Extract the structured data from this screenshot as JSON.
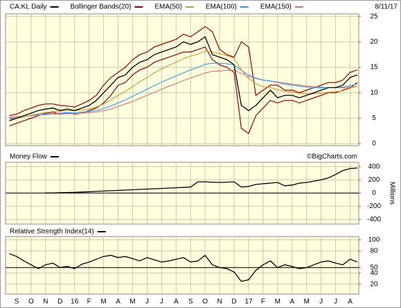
{
  "date": "8/11/17",
  "credit": "©BigCharts.com",
  "chart_data": [
    {
      "type": "line",
      "title": "CA:KL Daily",
      "ylim": [
        -0.4,
        25.5
      ],
      "yticks": [
        0,
        5,
        10,
        15,
        20,
        25
      ],
      "grid": true,
      "series": [
        {
          "name": "CA:KL Daily",
          "color": "#000000",
          "values": [
            4.5,
            5,
            5.5,
            6,
            6.5,
            6.8,
            7,
            6.5,
            6.8,
            6.5,
            7,
            7.5,
            8.5,
            10,
            11.5,
            13,
            13.5,
            15,
            16,
            16.5,
            17.5,
            18,
            18.5,
            19,
            20,
            19.5,
            20,
            21,
            17.5,
            17,
            16.5,
            15.5,
            7.5,
            6.5,
            7.5,
            9,
            10.5,
            9,
            9.5,
            9.5,
            9,
            9.5,
            10,
            10.5,
            11,
            11,
            11.5,
            13,
            13.5
          ]
        },
        {
          "name": "Bollinger Bands(20)",
          "color": "#990000",
          "upper": [
            5.5,
            5.8,
            6.5,
            7,
            7.5,
            7.8,
            7.8,
            7.5,
            7.4,
            7.2,
            7.8,
            8.5,
            9.5,
            11.5,
            13,
            14,
            15,
            16.5,
            17.5,
            18,
            19,
            19.5,
            20,
            20.5,
            21.5,
            21,
            22,
            23,
            22,
            18.5,
            17.5,
            17,
            20,
            19,
            9.5,
            10.5,
            11.5,
            11.5,
            10.5,
            10.5,
            10,
            10.5,
            11,
            11.5,
            12,
            12,
            12.5,
            14,
            14.5
          ],
          "lower": [
            3.5,
            4,
            4.5,
            5,
            5.5,
            6,
            6.2,
            5.8,
            6,
            5.8,
            6,
            6.5,
            7,
            8,
            9.5,
            11.5,
            12,
            13.5,
            14.5,
            15,
            16,
            16.5,
            17,
            17.5,
            18,
            18,
            18.5,
            19,
            16.5,
            15.5,
            15,
            14,
            3,
            2,
            5.5,
            7,
            8.5,
            8,
            8.5,
            8.5,
            8,
            8.5,
            9,
            9.5,
            10,
            10,
            10.5,
            11,
            12
          ]
        },
        {
          "name": "EMA(50)",
          "color": "#cc9933",
          "values": [
            4.8,
            5,
            5.3,
            5.6,
            5.9,
            6.1,
            6.3,
            6.4,
            6.5,
            6.5,
            6.6,
            6.8,
            7.2,
            7.8,
            8.6,
            9.5,
            10.3,
            11.2,
            12.2,
            13,
            13.9,
            14.7,
            15.4,
            16,
            16.7,
            17.2,
            17.6,
            18.2,
            18,
            17.7,
            17.3,
            16.8,
            14.5,
            12.8,
            11.8,
            11.2,
            11,
            10.6,
            10.3,
            10.1,
            9.9,
            9.8,
            9.8,
            9.9,
            10.1,
            10.2,
            10.4,
            10.9,
            11.3
          ]
        },
        {
          "name": "EMA(100)",
          "color": "#3399ff",
          "values": [
            5,
            5.1,
            5.3,
            5.5,
            5.7,
            5.8,
            5.9,
            6,
            6.1,
            6.1,
            6.2,
            6.3,
            6.5,
            6.9,
            7.4,
            8,
            8.6,
            9.3,
            10,
            10.7,
            11.4,
            12.1,
            12.7,
            13.3,
            13.9,
            14.5,
            15,
            15.6,
            15.8,
            15.8,
            15.7,
            15.5,
            14.4,
            13.5,
            12.9,
            12.5,
            12.3,
            12,
            11.7,
            11.5,
            11.3,
            11.1,
            11,
            11,
            11,
            11,
            11.1,
            11.4,
            11.7
          ]
        },
        {
          "name": "EMA(150)",
          "color": "#e07070",
          "values": [
            5.2,
            5.3,
            5.4,
            5.5,
            5.6,
            5.7,
            5.8,
            5.8,
            5.9,
            5.9,
            6,
            6.1,
            6.2,
            6.5,
            6.8,
            7.3,
            7.8,
            8.3,
            8.9,
            9.5,
            10.1,
            10.7,
            11.3,
            11.8,
            12.4,
            12.9,
            13.4,
            13.9,
            14.2,
            14.3,
            14.4,
            14.4,
            13.8,
            13.2,
            12.8,
            12.5,
            12.3,
            12.1,
            11.9,
            11.7,
            11.5,
            11.3,
            11.2,
            11.1,
            11,
            11,
            11,
            11.1,
            11.3
          ]
        }
      ]
    },
    {
      "type": "line",
      "title": "Money Flow",
      "ylabel": "Millions",
      "ylim": [
        -470,
        465
      ],
      "yticks": [
        -400,
        -200,
        0,
        200,
        400
      ],
      "grid": true,
      "baseline": 0,
      "series": [
        {
          "name": "Money Flow",
          "color": "#000000",
          "values": [
            null,
            null,
            null,
            null,
            null,
            0,
            2,
            5,
            8,
            10,
            15,
            20,
            25,
            30,
            35,
            40,
            45,
            50,
            55,
            60,
            65,
            70,
            75,
            80,
            85,
            90,
            170,
            170,
            165,
            160,
            165,
            170,
            90,
            100,
            130,
            140,
            150,
            160,
            110,
            120,
            150,
            160,
            180,
            200,
            230,
            280,
            340,
            370,
            380
          ]
        }
      ]
    },
    {
      "type": "line",
      "title": "Relative Strength Index(14)",
      "ylim": [
        2,
        106
      ],
      "yticks": [
        20,
        40,
        50,
        80,
        100
      ],
      "grid": true,
      "baseline": 50,
      "categories": [
        null,
        "S",
        null,
        "O",
        null,
        "N",
        null,
        "D",
        null,
        "16",
        null,
        "F",
        null,
        "M",
        null,
        "A",
        null,
        "M",
        null,
        "J",
        null,
        "J",
        null,
        "A",
        null,
        "S",
        null,
        "O",
        null,
        "N",
        null,
        "D",
        null,
        "17",
        null,
        "F",
        null,
        "M",
        null,
        "A",
        null,
        "M",
        null,
        "J",
        null,
        "J",
        null,
        "A",
        null
      ],
      "series": [
        {
          "name": "Relative Strength Index(14)",
          "color": "#000000",
          "values": [
            75,
            70,
            62,
            55,
            48,
            55,
            58,
            50,
            52,
            48,
            56,
            60,
            65,
            70,
            72,
            68,
            70,
            66,
            62,
            68,
            64,
            60,
            62,
            65,
            68,
            60,
            62,
            72,
            55,
            50,
            48,
            42,
            25,
            28,
            45,
            55,
            62,
            50,
            55,
            52,
            48,
            50,
            55,
            60,
            62,
            58,
            55,
            65,
            60
          ]
        }
      ]
    }
  ]
}
